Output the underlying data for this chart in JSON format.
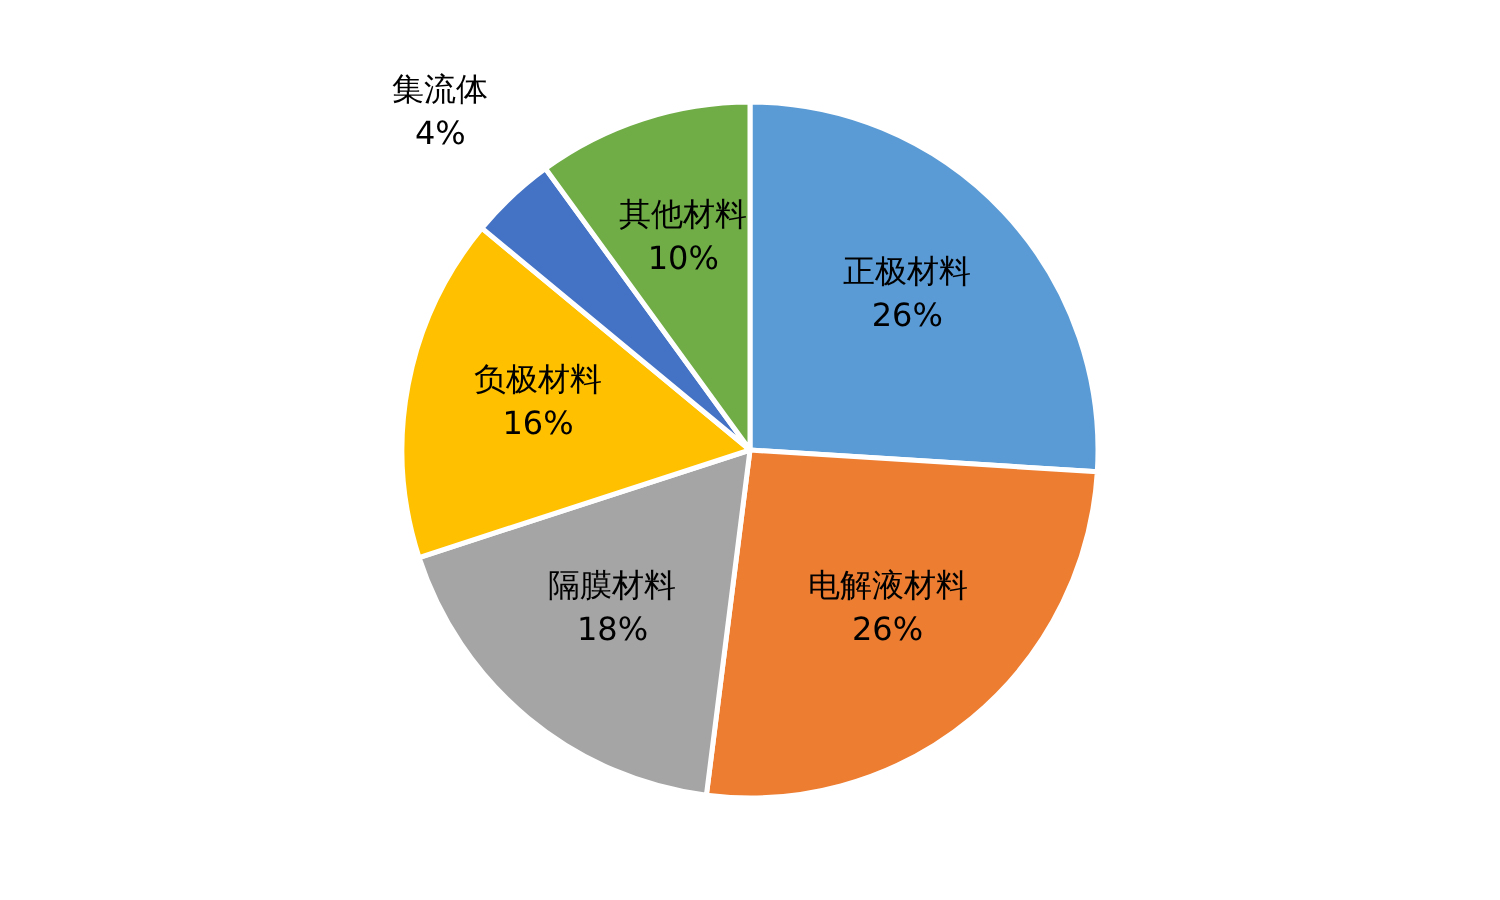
{
  "chart_data": {
    "type": "pie",
    "categories": [
      "正极材料",
      "电解液材料",
      "隔膜材料",
      "负极材料",
      "集流体",
      "其他材料"
    ],
    "values": [
      26,
      26,
      18,
      16,
      4,
      10
    ],
    "value_labels": [
      "26%",
      "26%",
      "18%",
      "16%",
      "4%",
      "10%"
    ],
    "colors": [
      "#5b9bd5",
      "#ed7d31",
      "#a5a5a5",
      "#ffc000",
      "#4472c4",
      "#70ad47"
    ]
  }
}
